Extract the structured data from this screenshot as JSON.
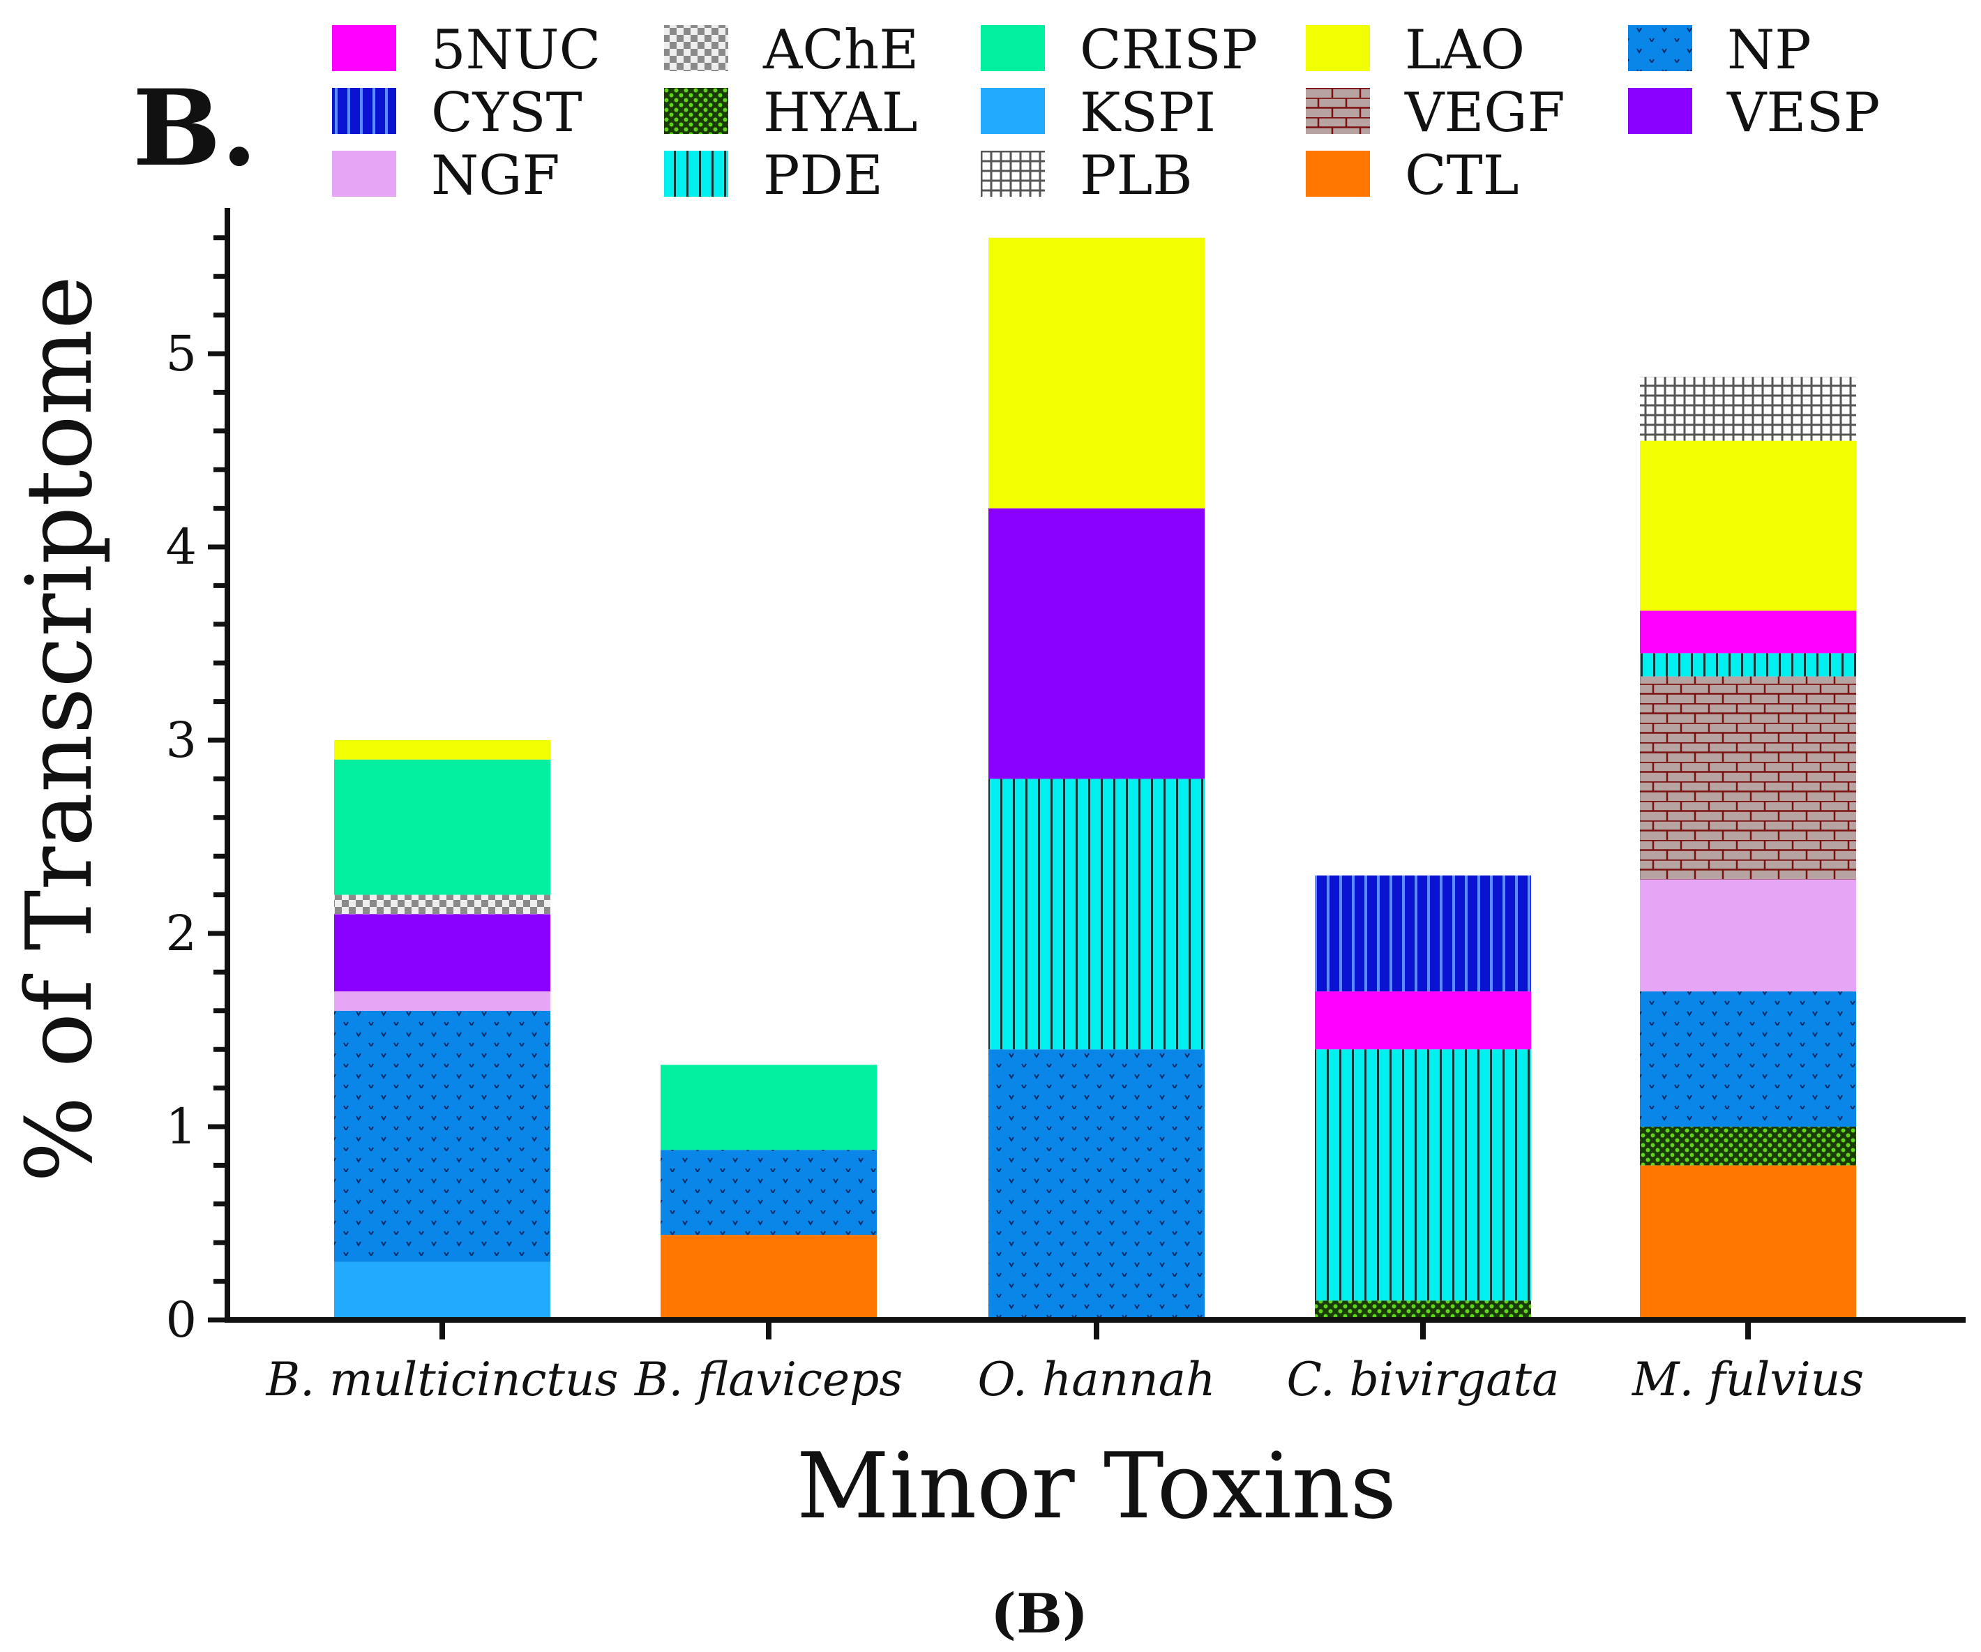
{
  "panel_label": "B.",
  "caption": {
    "open": "(",
    "letter": "B",
    "close": ")"
  },
  "colors": {
    "5NUC": "#ff00ff",
    "AChE": "#9a9a9a",
    "CRISP": "#00f0a0",
    "LAO": "#f2ff00",
    "NP": "#0a86e8",
    "CYST": "#0a14d0",
    "HYAL": "#3fae10",
    "KSPI": "#22aaff",
    "VEGF": "#b8a3a3",
    "VESP": "#8a00ff",
    "NGF": "#e6a6f5",
    "PDE": "#00f0f0",
    "PLB": "#ffffff",
    "CTL": "#ff7700"
  },
  "chart_data": {
    "type": "bar",
    "stacked": true,
    "title": "",
    "xlabel": "Minor Toxins",
    "ylabel": "% of Transcriptome",
    "ylim": [
      0,
      5.6
    ],
    "yticks": [
      0,
      1,
      2,
      3,
      4,
      5
    ],
    "categories": [
      "B. multicinctus",
      "B. flaviceps",
      "O. hannah",
      "C. bivirgata",
      "M. fulvius"
    ],
    "legend": [
      "5NUC",
      "AChE",
      "CRISP",
      "LAO",
      "NP",
      "CYST",
      "HYAL",
      "KSPI",
      "VEGF",
      "VESP",
      "NGF",
      "PDE",
      "PLB",
      "CTL"
    ],
    "legend_position": "top",
    "series": [
      {
        "name": "CTL",
        "values": [
          0,
          0.44,
          0,
          0,
          0.8
        ]
      },
      {
        "name": "KSPI",
        "values": [
          0.3,
          0,
          0,
          0,
          0
        ]
      },
      {
        "name": "HYAL",
        "values": [
          0,
          0,
          0,
          0.1,
          0.2
        ]
      },
      {
        "name": "NP",
        "values": [
          1.3,
          0.44,
          1.4,
          0,
          0.7
        ]
      },
      {
        "name": "PDE",
        "values": [
          0,
          0,
          1.4,
          1.3,
          0
        ]
      },
      {
        "name": "NGF",
        "values": [
          0.1,
          0,
          0,
          0,
          0.58
        ]
      },
      {
        "name": "VEGF",
        "values": [
          0,
          0,
          0,
          0,
          1.05
        ]
      },
      {
        "name": "PDE",
        "values": [
          0,
          0,
          0,
          0,
          0.12
        ]
      },
      {
        "name": "5NUC",
        "values": [
          0,
          0,
          0,
          0.3,
          0.22
        ]
      },
      {
        "name": "VESP",
        "values": [
          0.4,
          0,
          1.4,
          0,
          0
        ]
      },
      {
        "name": "AChE",
        "values": [
          0.1,
          0,
          0,
          0,
          0
        ]
      },
      {
        "name": "CYST",
        "values": [
          0,
          0,
          0,
          0.6,
          0
        ]
      },
      {
        "name": "CRISP",
        "values": [
          0.7,
          0.44,
          0,
          0,
          0
        ]
      },
      {
        "name": "LAO",
        "values": [
          0.1,
          0,
          1.4,
          0,
          0.88
        ]
      },
      {
        "name": "PLB",
        "values": [
          0,
          0,
          0,
          0,
          0.33
        ]
      }
    ]
  }
}
